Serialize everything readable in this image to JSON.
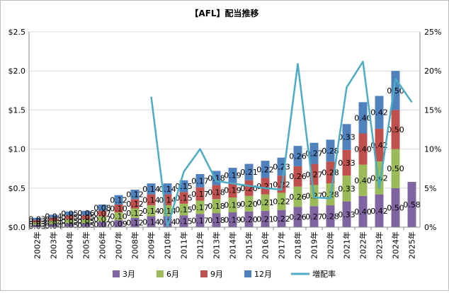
{
  "chart_data": {
    "type": "bar",
    "title": "【AFL】配当推移",
    "categories": [
      "2002年",
      "2003年",
      "2004年",
      "2005年",
      "2006年",
      "2007年",
      "2008年",
      "2009年",
      "2010年",
      "2011年",
      "2012年",
      "2013年",
      "2014年",
      "2015年",
      "2016年",
      "2017年",
      "2018年",
      "2019年",
      "2020年",
      "2021年",
      "2022年",
      "2023年",
      "2024年",
      "2025年"
    ],
    "y_left": {
      "min": 0,
      "max": 2.5,
      "ticks": [
        "$0.0",
        "$0.5",
        "$1.0",
        "$1.5",
        "$2.0",
        "$2.5"
      ]
    },
    "y_right": {
      "min": 0,
      "max": 25,
      "ticks": [
        "0%",
        "5%",
        "10%",
        "15%",
        "20%",
        "25%"
      ]
    },
    "grid": true,
    "legend_position": "bottom",
    "series": [
      {
        "name": "3月",
        "color": "#8064a2",
        "values": [
          0.03,
          0.04,
          0.05,
          0.05,
          0.07,
          0.09,
          0.12,
          0.14,
          0.14,
          0.15,
          0.17,
          0.18,
          0.19,
          0.2,
          0.21,
          0.22,
          0.26,
          0.27,
          0.28,
          0.33,
          0.4,
          0.42,
          0.5,
          0.58
        ],
        "labels": [
          "0.03",
          "0.04",
          "0.05",
          "0.05",
          "0.07",
          "0.09",
          "0.12",
          "0.14",
          "0.14",
          "0.15",
          "0.17",
          "0.18",
          "0.19",
          "0.20",
          "0.21",
          "0.22",
          "0.26",
          "0.27",
          "0.28",
          "0.33",
          "0.40",
          "0.42",
          "0.50",
          "0.58"
        ]
      },
      {
        "name": "6月",
        "color": "#9bbb59",
        "values": [
          0.03,
          0.04,
          0.05,
          0.05,
          0.07,
          0.1,
          0.12,
          0.14,
          0.14,
          0.15,
          0.17,
          0.18,
          0.19,
          0.2,
          0.21,
          0.22,
          0.26,
          0.27,
          0.28,
          0.33,
          0.4,
          0.42,
          0.5,
          0
        ],
        "labels": [
          "0.03",
          "0.04",
          "0.05",
          "0.05",
          "0.07",
          "0.10",
          "0.12",
          "0.14",
          "0.14",
          "0.15",
          "0.17",
          "0.18",
          "0.19",
          "0.20",
          "0.21",
          "0.22",
          "0.26",
          "0.27",
          "0.28",
          "0.33",
          "0.40",
          "0.42",
          "0.50",
          ""
        ]
      },
      {
        "name": "9月",
        "color": "#c0504d",
        "values": [
          0.03,
          0.04,
          0.05,
          0.05,
          0.07,
          0.1,
          0.12,
          0.14,
          0.14,
          0.15,
          0.17,
          0.18,
          0.19,
          0.2,
          0.21,
          0.22,
          0.26,
          0.27,
          0.28,
          0.33,
          0.4,
          0.42,
          0.5,
          0
        ],
        "labels": [
          "0.03",
          "0.04",
          "0.05",
          "0.05",
          "0.07",
          "0.10",
          "0.12",
          "0.14",
          "0.14",
          "0.15",
          "0.17",
          "0.18",
          "0.19",
          "0.20",
          "0.21",
          "0.22",
          "0.26",
          "0.27",
          "0.28",
          "0.33",
          "0.40",
          "0.42",
          "0.50",
          ""
        ]
      },
      {
        "name": "12月",
        "color": "#4f81bd",
        "values": [
          0.03,
          0.04,
          0.05,
          0.06,
          0.08,
          0.12,
          0.12,
          0.14,
          0.14,
          0.15,
          0.17,
          0.18,
          0.19,
          0.21,
          0.22,
          0.23,
          0.26,
          0.27,
          0.28,
          0.33,
          0.4,
          0.42,
          0.5,
          0
        ],
        "labels": [
          "0.03",
          "0.04",
          "0.05",
          "0.06",
          "0.08",
          "0.12",
          "0.12",
          "0.14",
          "0.14",
          "0.15",
          "0.17",
          "0.18",
          "0.19",
          "0.21",
          "0.22",
          "0.23",
          "0.26",
          "0.27",
          "0.28",
          "0.33",
          "0.40",
          "0.42",
          "0.50",
          ""
        ]
      }
    ],
    "line_series": {
      "name": "増配率",
      "color": "#4bacc6",
      "axis": "right",
      "values": [
        null,
        null,
        null,
        null,
        null,
        null,
        null,
        16.7,
        0,
        7.1,
        10,
        5.9,
        5.6,
        5.3,
        5,
        4.8,
        20.9,
        3.8,
        3.7,
        17.9,
        21.2,
        5,
        19,
        16
      ]
    }
  }
}
